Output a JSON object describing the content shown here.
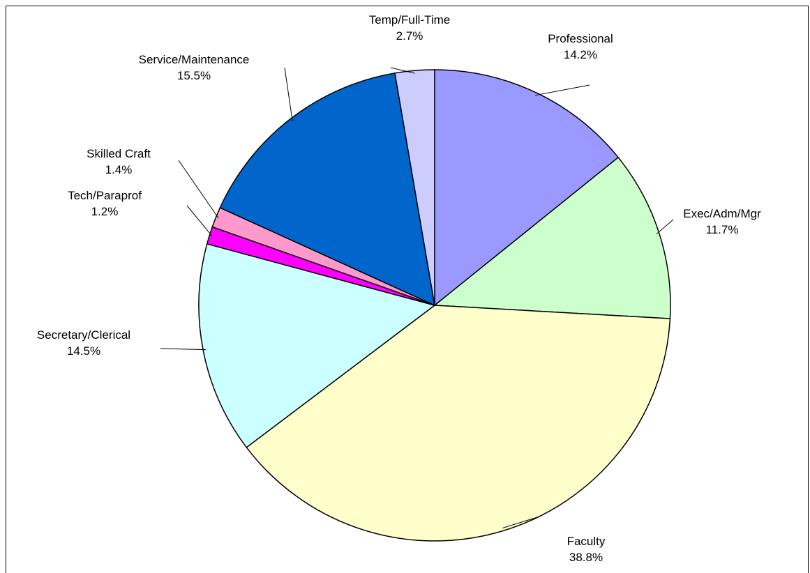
{
  "chart_data": {
    "type": "pie",
    "categories": [
      "Professional",
      "Exec/Adm/Mgr",
      "Faculty",
      "Secretary/Clerical",
      "Tech/Paraprof",
      "Skilled Craft",
      "Service/Maintenance",
      "Temp/Full-Time"
    ],
    "values": [
      14.2,
      11.7,
      38.8,
      14.5,
      1.2,
      1.4,
      15.5,
      2.7
    ],
    "value_labels": [
      "14.2%",
      "11.7%",
      "38.8%",
      "14.5%",
      "1.2%",
      "1.4%",
      "15.5%",
      "2.7%"
    ],
    "colors": [
      "#9999ff",
      "#ccffcc",
      "#ffffcc",
      "#ccffff",
      "#ff00ff",
      "#ff99cc",
      "#0066cc",
      "#ccccff"
    ]
  }
}
